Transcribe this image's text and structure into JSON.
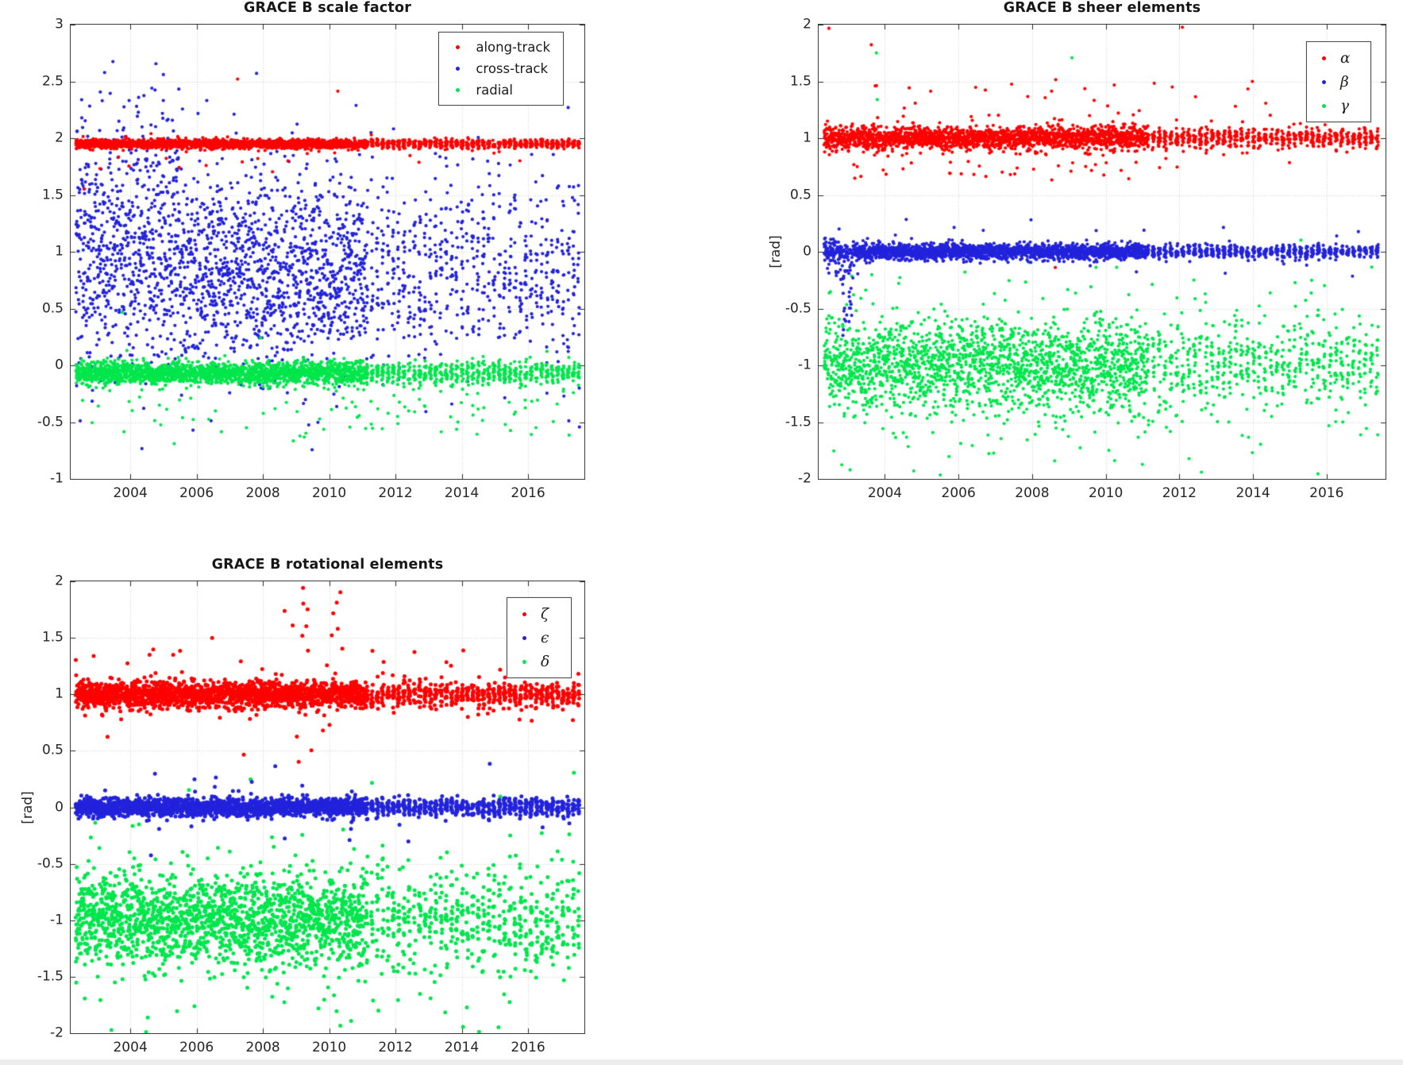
{
  "figure": {
    "background": "#ffffff",
    "axis_color": "#3a3a3a",
    "grid_color": "rgba(38,38,38,0.22)",
    "tick_color": "#262626"
  },
  "chart_data": [
    {
      "type": "scatter",
      "title": "GRACE B scale factor",
      "xlabel": "",
      "ylabel": "",
      "xlim": [
        2002.2,
        2017.7
      ],
      "ylim": [
        -1,
        3
      ],
      "xticks": [
        2004,
        2006,
        2008,
        2010,
        2012,
        2014,
        2016
      ],
      "yticks": [
        3,
        2.5,
        2,
        1.5,
        1,
        0.5,
        0,
        -0.5,
        -1
      ],
      "grid": true,
      "legend_position": "top-right",
      "legend_style": "text",
      "marker_r": 2.1,
      "sampling": {
        "seed": 7,
        "t0": 2002.35,
        "t1": 2017.55,
        "step": 0.004,
        "gap_p": 0.12,
        "stripe_start": 2011.1,
        "stripe_period": 0.16,
        "stripe_duty": 0.42
      },
      "series": [
        {
          "name": "along-track",
          "color": "#ff0000",
          "z": 3,
          "seed": 101,
          "gen": {
            "base": 1.95,
            "sigma": 0.02,
            "spike_p": 0.012,
            "spike_lo": -0.3,
            "spike_hi": 0.08,
            "rare_p": 0.002,
            "rare_lo": -0.9,
            "rare_hi": 0.95
          }
        },
        {
          "name": "cross-track",
          "color": "#2323dc",
          "z": 1,
          "seed": 102,
          "gen": {
            "base": 0.82,
            "sigma": 0.42,
            "late_factor": 0.95,
            "spike_p": 0.05,
            "spike_lo": -0.9,
            "spike_hi": 1.2,
            "rare_p": 0.004,
            "rare_lo": 1.1,
            "rare_hi": 2.0,
            "early": {
              "until": 2005.5,
              "p": 0.45,
              "lo": 0.0,
              "hi": 1.0
            }
          }
        },
        {
          "name": "radial",
          "color": "#00e64c",
          "z": 2,
          "seed": 103,
          "gen": {
            "base": -0.07,
            "sigma": 0.05,
            "spike_p": 0.045,
            "spike_lo": -0.55,
            "spike_hi": 0.12,
            "late_spike_mult": 2.2,
            "rare_p": 0.004,
            "rare_lo": -0.8,
            "rare_hi": 1.1
          }
        }
      ]
    },
    {
      "type": "scatter",
      "title": "GRACE B sheer elements",
      "xlabel": "",
      "ylabel": "[rad]",
      "xlim": [
        2002.2,
        2017.6
      ],
      "ylim": [
        -2,
        2
      ],
      "xticks": [
        2004,
        2006,
        2008,
        2010,
        2012,
        2014,
        2016
      ],
      "yticks": [
        2,
        1.5,
        1,
        0.5,
        0,
        -0.5,
        -1,
        -1.5,
        -2
      ],
      "grid": true,
      "legend_position": "top-right",
      "legend_style": "math",
      "marker_r": 2.1,
      "sampling": {
        "seed": 8,
        "t0": 2002.35,
        "t1": 2017.5,
        "step": 0.004,
        "gap_p": 0.12,
        "stripe_start": 2011.1,
        "stripe_period": 0.16,
        "stripe_duty": 0.42
      },
      "series": [
        {
          "name": "α",
          "color": "#ff0000",
          "z": 3,
          "seed": 201,
          "gen": {
            "base": 1.0,
            "sigma": 0.05,
            "spike_p": 0.05,
            "spike_lo": -0.35,
            "spike_hi": 0.5,
            "late_factor": 0.85,
            "late_spike_mult": 0.7,
            "rare_p": 0.0015,
            "rare_lo": -1.25,
            "rare_hi": 0.95
          }
        },
        {
          "name": "β",
          "color": "#2323dc",
          "z": 2,
          "seed": 202,
          "gen": {
            "base": 0.0,
            "sigma": 0.035,
            "spike_p": 0.02,
            "spike_lo": -0.25,
            "spike_hi": 0.25,
            "late_factor": 0.8,
            "early": {
              "until": 2003.3,
              "p": 0.35,
              "lo": -0.2,
              "hi": 0.12
            },
            "window": {
              "from": 2002.85,
              "to": 2003.1,
              "p": 0.55,
              "lo": -0.65,
              "hi": 0.0
            }
          }
        },
        {
          "name": "γ",
          "color": "#00e64c",
          "z": 1,
          "seed": 203,
          "gen": {
            "base": -1.0,
            "sigma": 0.2,
            "spike_p": 0.06,
            "spike_lo": -0.95,
            "spike_hi": 0.85,
            "late_spike_mult": 2.2,
            "rare_p": 0.001,
            "rare_lo": 2.3,
            "rare_hi": 2.85
          }
        }
      ]
    },
    {
      "type": "scatter",
      "title": "GRACE B rotational elements",
      "xlabel": "",
      "ylabel": "[rad]",
      "xlim": [
        2002.2,
        2017.7
      ],
      "ylim": [
        -2,
        2
      ],
      "xticks": [
        2004,
        2006,
        2008,
        2010,
        2012,
        2014,
        2016
      ],
      "yticks": [
        2,
        1.5,
        1,
        0.5,
        0,
        -0.5,
        -1,
        -1.5,
        -2
      ],
      "grid": true,
      "legend_position": "top-right",
      "legend_style": "math",
      "marker_r": 2.5,
      "sampling": {
        "seed": 9,
        "t0": 2002.35,
        "t1": 2017.55,
        "step": 0.0045,
        "gap_p": 0.12,
        "stripe_start": 2011.1,
        "stripe_period": 0.16,
        "stripe_duty": 0.42
      },
      "series": [
        {
          "name": "ζ",
          "color": "#ff0000",
          "z": 3,
          "seed": 301,
          "gen": {
            "base": 1.0,
            "sigma": 0.06,
            "spike_p": 0.025,
            "spike_lo": -0.3,
            "spike_hi": 0.35,
            "rare_p": 0.0015,
            "rare_lo": -0.55,
            "rare_hi": 0.6,
            "window": {
              "from": 2008.6,
              "to": 2010.5,
              "p": 0.1,
              "lo": -0.55,
              "hi": 0.9
            }
          }
        },
        {
          "name": "ϵ",
          "color": "#2323dc",
          "z": 2,
          "seed": 302,
          "gen": {
            "base": 0.0,
            "sigma": 0.04,
            "spike_p": 0.015,
            "spike_lo": -0.3,
            "spike_hi": 0.3,
            "rare_p": 0.0012,
            "rare_lo": -0.5,
            "rare_hi": 0.5
          }
        },
        {
          "name": "δ",
          "color": "#00e64c",
          "z": 1,
          "seed": 303,
          "gen": {
            "base": -1.0,
            "sigma": 0.2,
            "spike_p": 0.06,
            "spike_lo": -1.0,
            "spike_hi": 0.9,
            "late_factor": 1.15,
            "late_spike_mult": 2.5,
            "rare_p": 0.0008,
            "rare_lo": 2.4,
            "rare_hi": 2.7
          }
        }
      ]
    }
  ]
}
